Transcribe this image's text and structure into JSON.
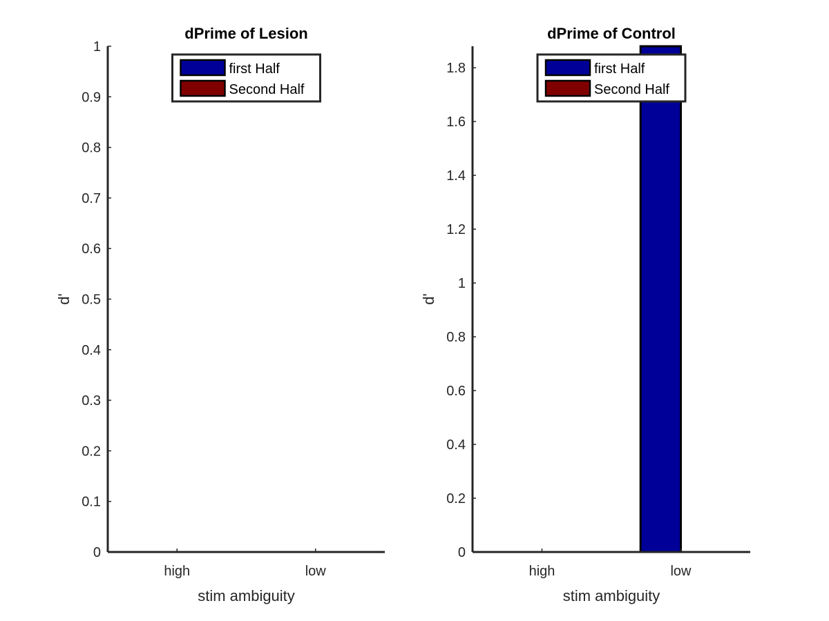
{
  "chart_data": [
    {
      "type": "bar",
      "title": "dPrime of Lesion",
      "xlabel": "stim ambiguity",
      "ylabel": "d'",
      "categories": [
        "high",
        "low"
      ],
      "series": [
        {
          "name": "first Half",
          "values": [
            0,
            0
          ]
        },
        {
          "name": "Second Half",
          "values": [
            0,
            0
          ]
        }
      ],
      "ylim": [
        0,
        1
      ],
      "yticks": [
        "0",
        "0.1",
        "0.2",
        "0.3",
        "0.4",
        "0.5",
        "0.6",
        "0.7",
        "0.8",
        "0.9",
        "1"
      ],
      "legend_position": "top-center",
      "grid": false
    },
    {
      "type": "bar",
      "title": "dPrime of Control",
      "xlabel": "stim ambiguity",
      "ylabel": "d'",
      "categories": [
        "high",
        "low"
      ],
      "series": [
        {
          "name": "first Half",
          "values": [
            0,
            1.88
          ]
        },
        {
          "name": "Second Half",
          "values": [
            0,
            0
          ]
        }
      ],
      "ylim": [
        0,
        1.88
      ],
      "yticks": [
        "0",
        "0.2",
        "0.4",
        "0.6",
        "0.8",
        "1",
        "1.2",
        "1.4",
        "1.6",
        "1.8"
      ],
      "legend_position": "top-center",
      "grid": false
    }
  ],
  "colors": {
    "series": [
      "#000099",
      "#800000"
    ],
    "axis": "#262626",
    "bar_edge": "#000000"
  }
}
